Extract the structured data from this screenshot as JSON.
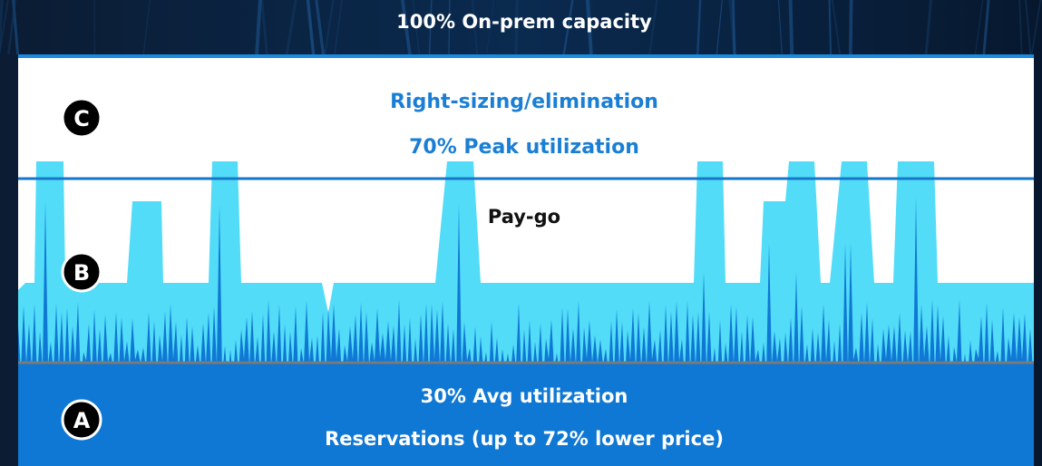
{
  "header": {
    "title": "100% On-prem capacity"
  },
  "zones": [
    {
      "marker": "C",
      "lines": [
        "Right-sizing/elimination",
        "70% Peak utilization"
      ]
    },
    {
      "marker": "B",
      "lines": [
        "Pay-go"
      ]
    },
    {
      "marker": "A",
      "lines": [
        "30% Avg utilization",
        "Reservations (up to 72% lower price)"
      ]
    }
  ]
}
